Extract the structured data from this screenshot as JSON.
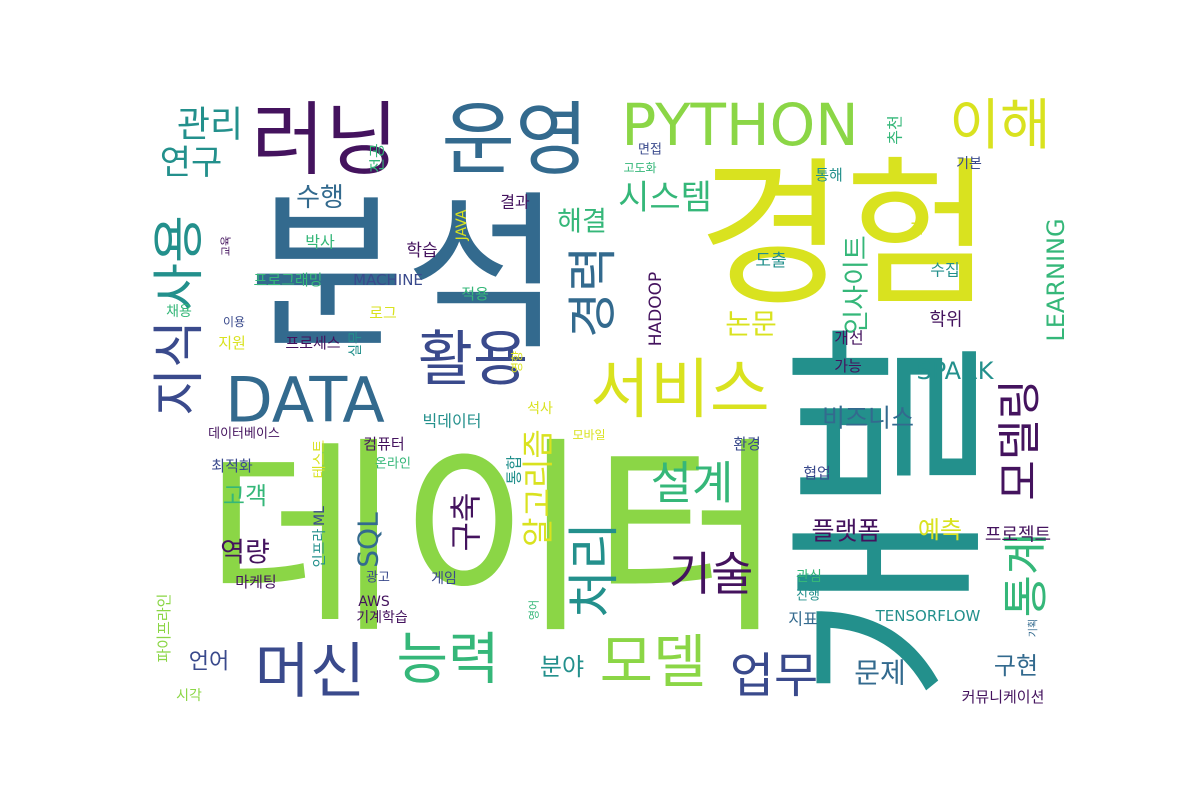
{
  "palette": {
    "purple": "#44135e",
    "indigo": "#3a4a8c",
    "blue": "#336a8e",
    "teal": "#23908c",
    "green": "#35b779",
    "lime": "#8bd646",
    "yellow": "#d9e21f"
  },
  "words": [
    {
      "text": "데이터",
      "color": "lime"
    },
    {
      "text": "개발",
      "color": "teal"
    },
    {
      "text": "분석",
      "color": "blue"
    },
    {
      "text": "경험",
      "color": "yellow"
    },
    {
      "text": "러닝",
      "color": "purple"
    },
    {
      "text": "운영",
      "color": "blue"
    },
    {
      "text": "PYTHON",
      "color": "lime"
    },
    {
      "text": "이해",
      "color": "yellow"
    },
    {
      "text": "DATA",
      "color": "blue"
    },
    {
      "text": "활용",
      "color": "indigo"
    },
    {
      "text": "서비스",
      "color": "yellow"
    },
    {
      "text": "지식",
      "color": "indigo"
    },
    {
      "text": "사용",
      "color": "teal"
    },
    {
      "text": "경력",
      "color": "blue"
    },
    {
      "text": "관리",
      "color": "teal"
    },
    {
      "text": "연구",
      "color": "teal"
    },
    {
      "text": "능력",
      "color": "green"
    },
    {
      "text": "머신",
      "color": "indigo"
    },
    {
      "text": "모델",
      "color": "lime"
    },
    {
      "text": "업무",
      "color": "indigo"
    },
    {
      "text": "처리",
      "color": "teal"
    },
    {
      "text": "기술",
      "color": "purple"
    },
    {
      "text": "설계",
      "color": "green"
    },
    {
      "text": "통계",
      "color": "green"
    },
    {
      "text": "모델링",
      "color": "purple"
    },
    {
      "text": "알고리즘",
      "color": "yellow"
    },
    {
      "text": "시스템",
      "color": "green"
    },
    {
      "text": "해결",
      "color": "green"
    },
    {
      "text": "수행",
      "color": "blue"
    },
    {
      "text": "구축",
      "color": "purple"
    },
    {
      "text": "SQL",
      "color": "blue"
    },
    {
      "text": "역량",
      "color": "purple"
    },
    {
      "text": "고객",
      "color": "green"
    },
    {
      "text": "논문",
      "color": "yellow"
    },
    {
      "text": "인사이트",
      "color": "green"
    },
    {
      "text": "LEARNING",
      "color": "green"
    },
    {
      "text": "SPARK",
      "color": "teal"
    },
    {
      "text": "비즈니스",
      "color": "blue"
    },
    {
      "text": "플랫폼",
      "color": "purple"
    },
    {
      "text": "예측",
      "color": "yellow"
    },
    {
      "text": "프로젝트",
      "color": "purple"
    },
    {
      "text": "문제",
      "color": "blue"
    },
    {
      "text": "구현",
      "color": "blue"
    },
    {
      "text": "분야",
      "color": "teal"
    },
    {
      "text": "언어",
      "color": "indigo"
    },
    {
      "text": "학습",
      "color": "purple"
    },
    {
      "text": "박사",
      "color": "green"
    },
    {
      "text": "결과",
      "color": "purple"
    },
    {
      "text": "JAVA",
      "color": "yellow"
    },
    {
      "text": "프로그래밍",
      "color": "green"
    },
    {
      "text": "MACHINE",
      "color": "indigo"
    },
    {
      "text": "HADOOP",
      "color": "purple"
    },
    {
      "text": "도출",
      "color": "teal"
    },
    {
      "text": "수집",
      "color": "teal"
    },
    {
      "text": "학위",
      "color": "purple"
    },
    {
      "text": "개선",
      "color": "purple"
    },
    {
      "text": "가능",
      "color": "purple"
    },
    {
      "text": "통해",
      "color": "teal"
    },
    {
      "text": "기본",
      "color": "indigo"
    },
    {
      "text": "면접",
      "color": "indigo"
    },
    {
      "text": "고도화",
      "color": "green"
    },
    {
      "text": "추천",
      "color": "green"
    },
    {
      "text": "AI",
      "color": "yellow"
    },
    {
      "text": "전공",
      "color": "green"
    },
    {
      "text": "교육",
      "color": "purple"
    },
    {
      "text": "채용",
      "color": "green"
    },
    {
      "text": "이용",
      "color": "indigo"
    },
    {
      "text": "지원",
      "color": "yellow"
    },
    {
      "text": "프로세스",
      "color": "purple"
    },
    {
      "text": "로그",
      "color": "yellow"
    },
    {
      "text": "실무",
      "color": "teal"
    },
    {
      "text": "적용",
      "color": "green"
    },
    {
      "text": "영향",
      "color": "yellow"
    },
    {
      "text": "빅데이터",
      "color": "teal"
    },
    {
      "text": "석사",
      "color": "yellow"
    },
    {
      "text": "데이터베이스",
      "color": "purple"
    },
    {
      "text": "최적화",
      "color": "indigo"
    },
    {
      "text": "테스트",
      "color": "yellow"
    },
    {
      "text": "컴퓨터",
      "color": "purple"
    },
    {
      "text": "온라인",
      "color": "green"
    },
    {
      "text": "모바일",
      "color": "yellow"
    },
    {
      "text": "통합",
      "color": "teal"
    },
    {
      "text": "환경",
      "color": "indigo"
    },
    {
      "text": "협업",
      "color": "indigo"
    },
    {
      "text": "마케팅",
      "color": "purple"
    },
    {
      "text": "ML",
      "color": "indigo"
    },
    {
      "text": "인프라",
      "color": "teal"
    },
    {
      "text": "광고",
      "color": "indigo"
    },
    {
      "text": "게임",
      "color": "indigo"
    },
    {
      "text": "AWS",
      "color": "purple"
    },
    {
      "text": "기계학습",
      "color": "purple"
    },
    {
      "text": "영어",
      "color": "green"
    },
    {
      "text": "관심",
      "color": "green"
    },
    {
      "text": "진행",
      "color": "teal"
    },
    {
      "text": "지표",
      "color": "blue"
    },
    {
      "text": "TENSORFLOW",
      "color": "teal"
    },
    {
      "text": "기획",
      "color": "blue"
    },
    {
      "text": "파이프라인",
      "color": "lime"
    },
    {
      "text": "시각",
      "color": "lime"
    },
    {
      "text": "커뮤니케이션",
      "color": "purple"
    }
  ]
}
